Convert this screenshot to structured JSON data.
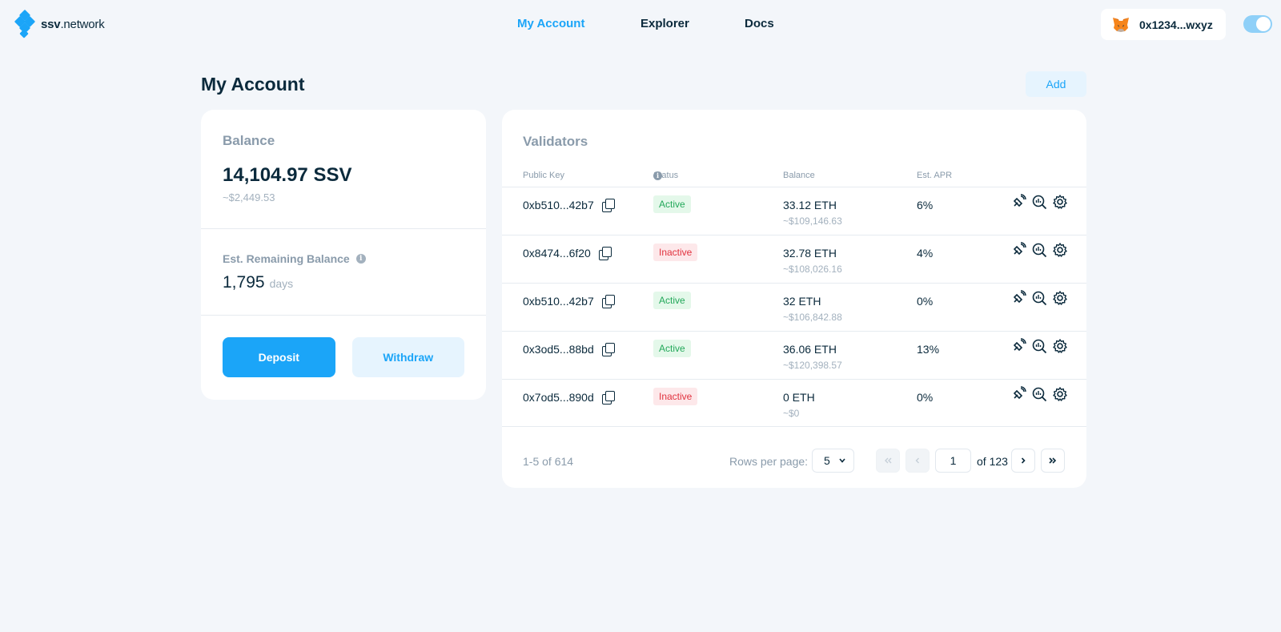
{
  "header": {
    "logo_bold": "ssv",
    "logo_rest": ".network",
    "nav": [
      "My Account",
      "Explorer",
      "Docs"
    ],
    "active_nav": "My Account",
    "wallet_address": "0x1234...wxyz"
  },
  "page": {
    "title": "My Account",
    "add_label": "Add"
  },
  "balance_card": {
    "heading": "Balance",
    "value": "14,104.97 SSV",
    "usd": "~$2,449.53",
    "est_label": "Est. Remaining Balance",
    "est_value": "1,795",
    "est_unit": "days",
    "deposit_label": "Deposit",
    "withdraw_label": "Withdraw"
  },
  "validators": {
    "title": "Validators",
    "columns": [
      "Public Key",
      "Status",
      "Balance",
      "Est. APR"
    ],
    "rows": [
      {
        "key": "0xb510...42b7",
        "status": "Active",
        "eth": "33.12 ETH",
        "usd": "~$109,146.63",
        "apr": "6%"
      },
      {
        "key": "0x8474...6f20",
        "status": "Inactive",
        "eth": "32.78 ETH",
        "usd": "~$108,026.16",
        "apr": "4%"
      },
      {
        "key": "0xb510...42b7",
        "status": "Active",
        "eth": "32 ETH",
        "usd": "~$106,842.88",
        "apr": "0%"
      },
      {
        "key": "0x3od5...88bd",
        "status": "Active",
        "eth": "36.06 ETH",
        "usd": "~$120,398.57",
        "apr": "13%"
      },
      {
        "key": "0x7od5...890d",
        "status": "Inactive",
        "eth": "0 ETH",
        "usd": "~$0",
        "apr": "0%"
      }
    ],
    "range_text": "1-5 of 614",
    "rows_per_page_label": "Rows per page:",
    "rows_per_page": "5",
    "current_page": "1",
    "of_pages": "of 123"
  },
  "colors": {
    "accent": "#1ba5f8",
    "background": "#f3f6fa",
    "active_green": "#23a85a",
    "inactive_red": "#e1323e"
  },
  "icons": [
    "copy-icon",
    "satellite-icon",
    "explorer-search-icon",
    "gear-icon",
    "chevron-down-icon",
    "first-page-icon",
    "prev-page-icon",
    "next-page-icon",
    "last-page-icon",
    "info-icon",
    "metamask-fox-icon"
  ]
}
